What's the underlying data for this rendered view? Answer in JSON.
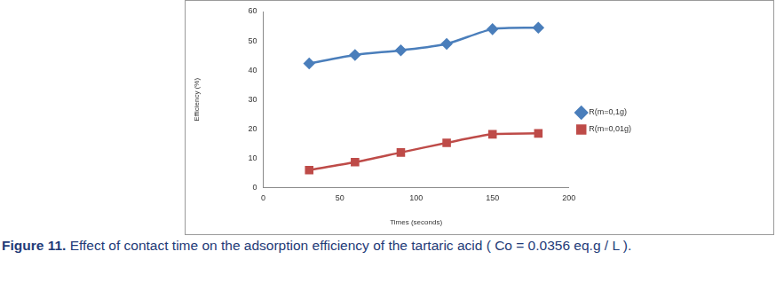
{
  "chart_data": {
    "type": "line",
    "caption": "Figure 11. Effect of contact time on the adsorption efficiency of the tartaric acid ( Co = 0.0356 eq.g / L ).",
    "x_label": "Times (seconds)",
    "y_label": "Efficiency (%)",
    "x": [
      30,
      60,
      90,
      120,
      150,
      180
    ],
    "series": [
      {
        "name": "R(m=0,1g)",
        "color": "#4a7ebb",
        "marker": "diamond",
        "values": [
          42.3,
          45.2,
          46.8,
          49,
          54,
          54.5
        ]
      },
      {
        "name": "R(m=0,01g)",
        "color": "#be4b48",
        "marker": "square",
        "values": [
          6,
          8.7,
          12,
          15.3,
          18.2,
          18.5
        ]
      }
    ],
    "xlim": [
      0,
      200
    ],
    "xticks": [
      0,
      50,
      100,
      150,
      200
    ],
    "ylim": [
      0,
      60
    ],
    "yticks": [
      0,
      10,
      20,
      30,
      40,
      50,
      60
    ],
    "grid": false,
    "legend": "right"
  }
}
